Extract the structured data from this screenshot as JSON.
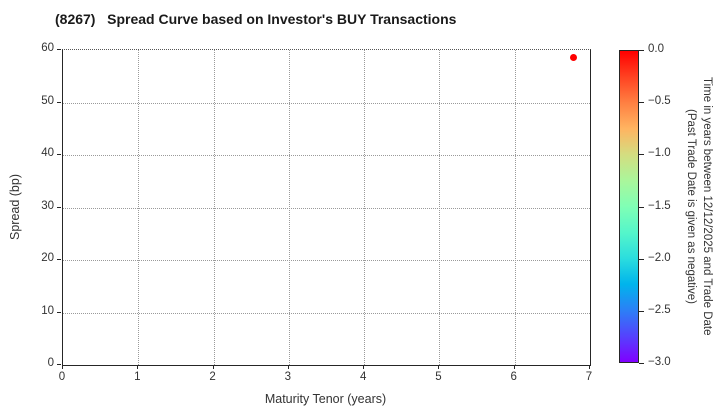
{
  "title": "(8267)   Spread Curve based on Investor's BUY Transactions",
  "chart_data": {
    "type": "scatter",
    "title": "(8267)   Spread Curve based on Investor's BUY Transactions",
    "xlabel": "Maturity Tenor (years)",
    "ylabel": "Spread (bp)",
    "xlim": [
      0,
      7
    ],
    "ylim": [
      0,
      60
    ],
    "xticks": [
      0,
      1,
      2,
      3,
      4,
      5,
      6,
      7
    ],
    "yticks": [
      0,
      10,
      20,
      30,
      40,
      50,
      60
    ],
    "grid": true,
    "legend_position": "none",
    "points": [
      {
        "x": 6.8,
        "y": 58.3,
        "color": "#ff0000",
        "time_value": 0.0
      }
    ],
    "colorbar": {
      "label_line1": "Time in years between 12/12/2025 and Trade Date",
      "label_line2": "(Past Trade Date is given as negative)",
      "tick_labels": [
        "0.0",
        "−0.5",
        "−1.0",
        "−1.5",
        "−2.0",
        "−2.5",
        "−3.0"
      ],
      "tick_values": [
        0,
        -0.5,
        -1.0,
        -1.5,
        -2.0,
        -2.5,
        -3.0
      ],
      "range_top": 0,
      "range_bottom": -3,
      "colormap_name": "rainbow",
      "gradient_top_to_bottom": [
        {
          "pos": 0.0,
          "color": "#ff0000"
        },
        {
          "pos": 8.3,
          "color": "#ff4221"
        },
        {
          "pos": 16.7,
          "color": "#ff8042"
        },
        {
          "pos": 25.0,
          "color": "#ffb461"
        },
        {
          "pos": 33.3,
          "color": "#d4dd80"
        },
        {
          "pos": 41.7,
          "color": "#aaf69b"
        },
        {
          "pos": 50.0,
          "color": "#80ffb5"
        },
        {
          "pos": 58.3,
          "color": "#55f6ca"
        },
        {
          "pos": 66.7,
          "color": "#2bddde"
        },
        {
          "pos": 75.0,
          "color": "#00b4ec"
        },
        {
          "pos": 83.3,
          "color": "#2b80f6"
        },
        {
          "pos": 91.7,
          "color": "#5542fd"
        },
        {
          "pos": 100.0,
          "color": "#8000ff"
        }
      ]
    }
  }
}
